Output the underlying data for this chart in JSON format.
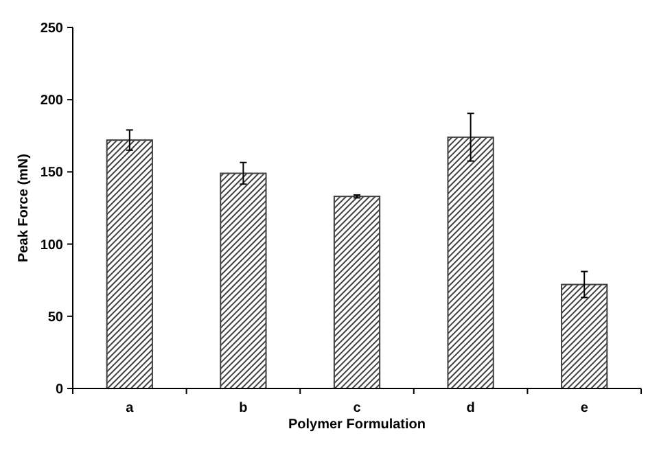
{
  "chart_data": {
    "type": "bar",
    "xlabel": "Polymer Formulation",
    "ylabel": "Peak Force (mN)",
    "categories": [
      "a",
      "b",
      "c",
      "d",
      "e"
    ],
    "values": [
      172,
      149,
      133,
      174,
      72
    ],
    "errors": [
      7,
      7.5,
      1,
      16.5,
      9
    ],
    "color": "#404040",
    "ylim": [
      0,
      250
    ],
    "yticks": [
      0,
      50,
      100,
      150,
      200,
      250
    ],
    "grid": false
  }
}
